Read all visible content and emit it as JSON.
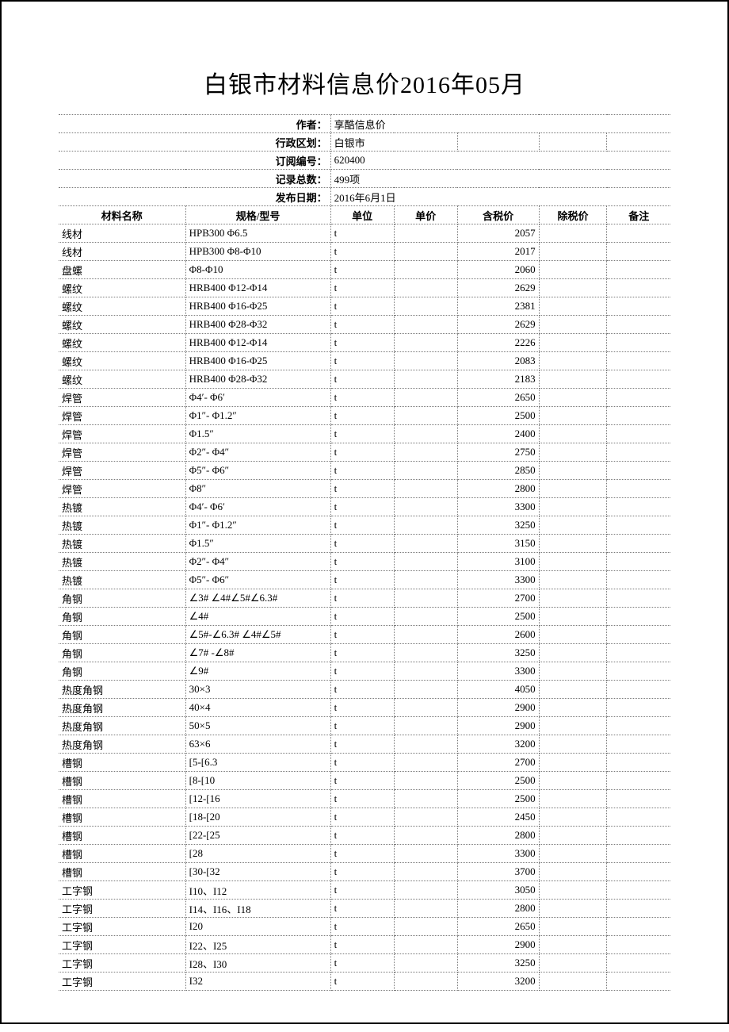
{
  "title": "白银市材料信息价2016年05月",
  "meta": {
    "author_label": "作者：",
    "author": "享酷信息价",
    "region_label": "行政区划：",
    "region": "白银市",
    "subscribe_label": "订阅编号：",
    "subscribe": "620400",
    "count_label": "记录总数：",
    "count": "499项",
    "pubdate_label": "发布日期：",
    "pubdate": "2016年6月1日"
  },
  "headers": {
    "name": "材料名称",
    "spec": "规格/型号",
    "unit": "单位",
    "price": "单价",
    "tax": "含税价",
    "notax": "除税价",
    "remark": "备注"
  },
  "rows": [
    {
      "name": "线材",
      "spec": "HPB300 Φ6.5",
      "unit": "t",
      "price": "",
      "tax": "2057",
      "notax": "",
      "remark": ""
    },
    {
      "name": "线材",
      "spec": "HPB300 Φ8-Φ10",
      "unit": "t",
      "price": "",
      "tax": "2017",
      "notax": "",
      "remark": ""
    },
    {
      "name": "盘螺",
      "spec": "Φ8-Φ10",
      "unit": "t",
      "price": "",
      "tax": "2060",
      "notax": "",
      "remark": ""
    },
    {
      "name": "螺纹",
      "spec": "HRB400 Φ12-Φ14",
      "unit": "t",
      "price": "",
      "tax": "2629",
      "notax": "",
      "remark": ""
    },
    {
      "name": "螺纹",
      "spec": "HRB400 Φ16-Φ25",
      "unit": "t",
      "price": "",
      "tax": "2381",
      "notax": "",
      "remark": ""
    },
    {
      "name": "螺纹",
      "spec": "HRB400 Φ28-Φ32",
      "unit": "t",
      "price": "",
      "tax": "2629",
      "notax": "",
      "remark": ""
    },
    {
      "name": "螺纹",
      "spec": "HRB400 Φ12-Φ14",
      "unit": "t",
      "price": "",
      "tax": "2226",
      "notax": "",
      "remark": ""
    },
    {
      "name": "螺纹",
      "spec": "HRB400 Φ16-Φ25",
      "unit": "t",
      "price": "",
      "tax": "2083",
      "notax": "",
      "remark": ""
    },
    {
      "name": "螺纹",
      "spec": "HRB400 Φ28-Φ32",
      "unit": "t",
      "price": "",
      "tax": "2183",
      "notax": "",
      "remark": ""
    },
    {
      "name": "焊管",
      "spec": "Φ4′- Φ6′",
      "unit": "t",
      "price": "",
      "tax": "2650",
      "notax": "",
      "remark": ""
    },
    {
      "name": "焊管",
      "spec": "Φ1″- Φ1.2″",
      "unit": "t",
      "price": "",
      "tax": "2500",
      "notax": "",
      "remark": ""
    },
    {
      "name": "焊管",
      "spec": "Φ1.5″",
      "unit": "t",
      "price": "",
      "tax": "2400",
      "notax": "",
      "remark": ""
    },
    {
      "name": "焊管",
      "spec": "Φ2″- Φ4″",
      "unit": "t",
      "price": "",
      "tax": "2750",
      "notax": "",
      "remark": ""
    },
    {
      "name": "焊管",
      "spec": "Φ5″- Φ6″",
      "unit": "t",
      "price": "",
      "tax": "2850",
      "notax": "",
      "remark": ""
    },
    {
      "name": "焊管",
      "spec": "Φ8″",
      "unit": "t",
      "price": "",
      "tax": "2800",
      "notax": "",
      "remark": ""
    },
    {
      "name": "热镀",
      "spec": "Φ4′- Φ6′",
      "unit": "t",
      "price": "",
      "tax": "3300",
      "notax": "",
      "remark": ""
    },
    {
      "name": "热镀",
      "spec": "Φ1″- Φ1.2″",
      "unit": "t",
      "price": "",
      "tax": "3250",
      "notax": "",
      "remark": ""
    },
    {
      "name": "热镀",
      "spec": "Φ1.5″",
      "unit": "t",
      "price": "",
      "tax": "3150",
      "notax": "",
      "remark": ""
    },
    {
      "name": "热镀",
      "spec": "Φ2″- Φ4″",
      "unit": "t",
      "price": "",
      "tax": "3100",
      "notax": "",
      "remark": ""
    },
    {
      "name": "热镀",
      "spec": "Φ5″- Φ6″",
      "unit": "t",
      "price": "",
      "tax": "3300",
      "notax": "",
      "remark": ""
    },
    {
      "name": "角钢",
      "spec": "∠3# ∠4#∠5#∠6.3#",
      "unit": "t",
      "price": "",
      "tax": "2700",
      "notax": "",
      "remark": ""
    },
    {
      "name": "角钢",
      "spec": "∠4#",
      "unit": "t",
      "price": "",
      "tax": "2500",
      "notax": "",
      "remark": ""
    },
    {
      "name": "角钢",
      "spec": "∠5#-∠6.3# ∠4#∠5#",
      "unit": "t",
      "price": "",
      "tax": "2600",
      "notax": "",
      "remark": ""
    },
    {
      "name": "角钢",
      "spec": "∠7# -∠8#",
      "unit": "t",
      "price": "",
      "tax": "3250",
      "notax": "",
      "remark": ""
    },
    {
      "name": "角钢",
      "spec": "∠9#",
      "unit": "t",
      "price": "",
      "tax": "3300",
      "notax": "",
      "remark": ""
    },
    {
      "name": "热度角钢",
      "spec": "30×3",
      "unit": "t",
      "price": "",
      "tax": "4050",
      "notax": "",
      "remark": ""
    },
    {
      "name": "热度角钢",
      "spec": "40×4",
      "unit": "t",
      "price": "",
      "tax": "2900",
      "notax": "",
      "remark": ""
    },
    {
      "name": "热度角钢",
      "spec": "50×5",
      "unit": "t",
      "price": "",
      "tax": "2900",
      "notax": "",
      "remark": ""
    },
    {
      "name": "热度角钢",
      "spec": "63×6",
      "unit": "t",
      "price": "",
      "tax": "3200",
      "notax": "",
      "remark": ""
    },
    {
      "name": "槽钢",
      "spec": "[5-[6.3",
      "unit": "t",
      "price": "",
      "tax": "2700",
      "notax": "",
      "remark": ""
    },
    {
      "name": "槽钢",
      "spec": "[8-[10",
      "unit": "t",
      "price": "",
      "tax": "2500",
      "notax": "",
      "remark": ""
    },
    {
      "name": "槽钢",
      "spec": "[12-[16",
      "unit": "t",
      "price": "",
      "tax": "2500",
      "notax": "",
      "remark": ""
    },
    {
      "name": "槽钢",
      "spec": "[18-[20",
      "unit": "t",
      "price": "",
      "tax": "2450",
      "notax": "",
      "remark": ""
    },
    {
      "name": "槽钢",
      "spec": "[22-[25",
      "unit": "t",
      "price": "",
      "tax": "2800",
      "notax": "",
      "remark": ""
    },
    {
      "name": "槽钢",
      "spec": "[28",
      "unit": "t",
      "price": "",
      "tax": "3300",
      "notax": "",
      "remark": ""
    },
    {
      "name": "槽钢",
      "spec": "[30-[32",
      "unit": "t",
      "price": "",
      "tax": "3700",
      "notax": "",
      "remark": ""
    },
    {
      "name": "工字钢",
      "spec": "I10、I12",
      "unit": "t",
      "price": "",
      "tax": "3050",
      "notax": "",
      "remark": ""
    },
    {
      "name": "工字钢",
      "spec": "I14、I16、I18",
      "unit": "t",
      "price": "",
      "tax": "2800",
      "notax": "",
      "remark": ""
    },
    {
      "name": "工字钢",
      "spec": "I20",
      "unit": "t",
      "price": "",
      "tax": "2650",
      "notax": "",
      "remark": ""
    },
    {
      "name": "工字钢",
      "spec": "I22、I25",
      "unit": "t",
      "price": "",
      "tax": "2900",
      "notax": "",
      "remark": ""
    },
    {
      "name": "工字钢",
      "spec": "I28、I30",
      "unit": "t",
      "price": "",
      "tax": "3250",
      "notax": "",
      "remark": ""
    },
    {
      "name": "工字钢",
      "spec": "I32",
      "unit": "t",
      "price": "",
      "tax": "3200",
      "notax": "",
      "remark": ""
    }
  ]
}
